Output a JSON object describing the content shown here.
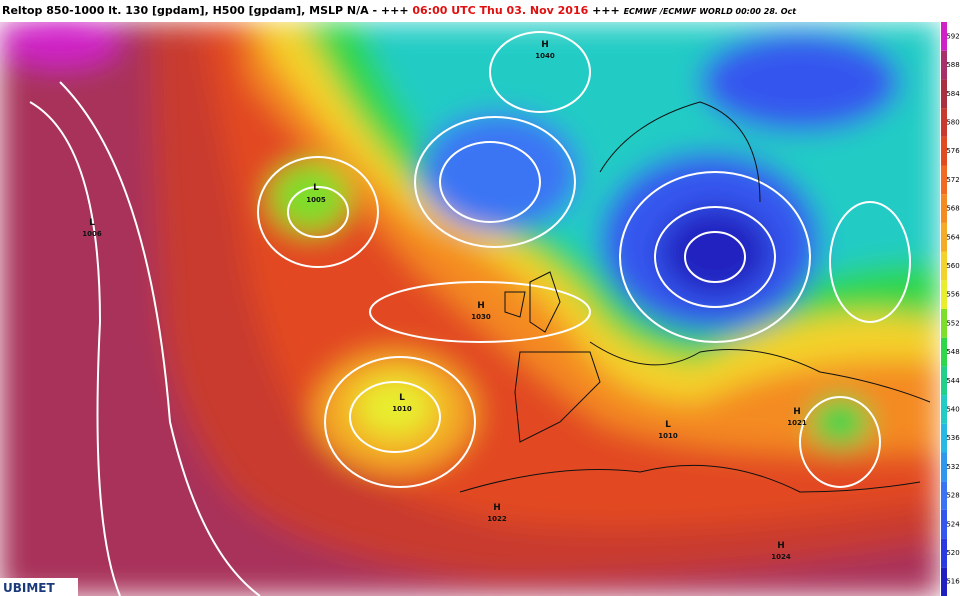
{
  "header": {
    "parts": [
      "Reltop 850-1000 lt. 130 [gpdam], H500 [gpdam], MSLP N/A - +++ ",
      "06:00 UTC Thu 03. Nov 2016",
      " +++ ",
      "ECMWF /ECMWF WORLD 00:00 28. Oct"
    ]
  },
  "colorbar": {
    "ticks": [
      "516",
      "520",
      "524",
      "528",
      "532",
      "536",
      "540",
      "544",
      "548",
      "552",
      "556",
      "560",
      "564",
      "568",
      "572",
      "576",
      "580",
      "584",
      "588",
      "592"
    ],
    "colors": [
      "#2020c0",
      "#2a3ae0",
      "#3456ee",
      "#3a74f4",
      "#2f98ee",
      "#27b8e4",
      "#22ccc4",
      "#22d08a",
      "#2ed64a",
      "#7ede2c",
      "#e8ee2e",
      "#f4d22c",
      "#f4ac26",
      "#f48a22",
      "#f26a22",
      "#e24a22",
      "#c83a2e",
      "#a83040",
      "#a8306a",
      "#d020c8"
    ]
  },
  "pressure_centers": [
    {
      "kind": "H",
      "value": "1040"
    },
    {
      "kind": "L",
      "value": "1005"
    },
    {
      "kind": "L",
      "value": "1006"
    },
    {
      "kind": "H",
      "value": "1030"
    },
    {
      "kind": "L",
      "value": "1010"
    },
    {
      "kind": "H",
      "value": "1021"
    },
    {
      "kind": "H",
      "value": "1022"
    },
    {
      "kind": "H",
      "value": "1024"
    },
    {
      "kind": "L",
      "value": "1010"
    }
  ],
  "logo": "UBIMET"
}
